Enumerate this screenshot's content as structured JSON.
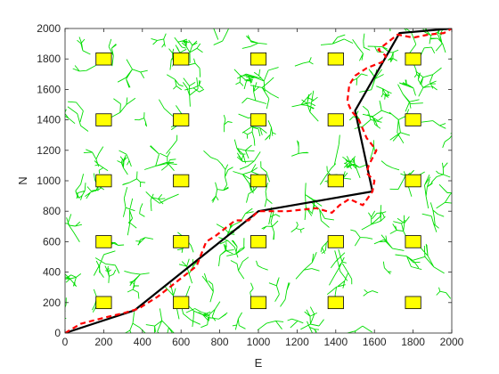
{
  "chart_data": {
    "type": "line",
    "title": "",
    "xlabel": "E",
    "ylabel": "N",
    "xlim": [
      0,
      2000
    ],
    "ylim": [
      0,
      2000
    ],
    "xticks": [
      0,
      200,
      400,
      600,
      800,
      1000,
      1200,
      1400,
      1600,
      1800,
      2000
    ],
    "yticks": [
      0,
      200,
      400,
      600,
      800,
      1000,
      1200,
      1400,
      1600,
      1800,
      2000
    ],
    "x_tick_labels": [
      "0",
      "200",
      "400",
      "600",
      "800",
      "1000",
      "1200",
      "1400",
      "1600",
      "1800",
      "2000"
    ],
    "y_tick_labels": [
      "0",
      "200",
      "400",
      "600",
      "800",
      "1000",
      "1200",
      "1400",
      "1600",
      "1800",
      "2000"
    ],
    "grid": false,
    "box": true,
    "colors": {
      "tree": "#00dd00",
      "path_solid": "#000000",
      "path_dashed": "#ff0000",
      "obstacle_fill": "#ffff00",
      "obstacle_edge": "#000000"
    },
    "obstacles": {
      "x_centers": [
        200,
        600,
        1000,
        1400,
        1800
      ],
      "y_centers": [
        200,
        600,
        1000,
        1400,
        1800
      ],
      "width": 80,
      "height": 80
    },
    "series": [
      {
        "style": "solid",
        "x": [
          0,
          360,
          1000,
          1590,
          1500,
          1730,
          2000
        ],
        "y": [
          0,
          150,
          800,
          930,
          1460,
          1970,
          2000
        ]
      },
      {
        "style": "dashed",
        "x": [
          0,
          80,
          200,
          300,
          380,
          480,
          580,
          680,
          730,
          780,
          880,
          950,
          1000,
          1150,
          1300,
          1380,
          1420,
          1470,
          1540,
          1590,
          1600,
          1560,
          1570,
          1610,
          1560,
          1520,
          1480,
          1460,
          1470,
          1500,
          1560,
          1640,
          1660,
          1620,
          1660,
          1720,
          1800,
          1880,
          1960,
          2000
        ],
        "y": [
          0,
          60,
          100,
          130,
          160,
          240,
          340,
          440,
          600,
          640,
          740,
          740,
          800,
          800,
          820,
          790,
          840,
          880,
          840,
          930,
          1000,
          1050,
          1100,
          1200,
          1280,
          1400,
          1460,
          1520,
          1630,
          1690,
          1740,
          1780,
          1820,
          1860,
          1900,
          1960,
          1940,
          1960,
          1970,
          2000
        ]
      }
    ]
  }
}
